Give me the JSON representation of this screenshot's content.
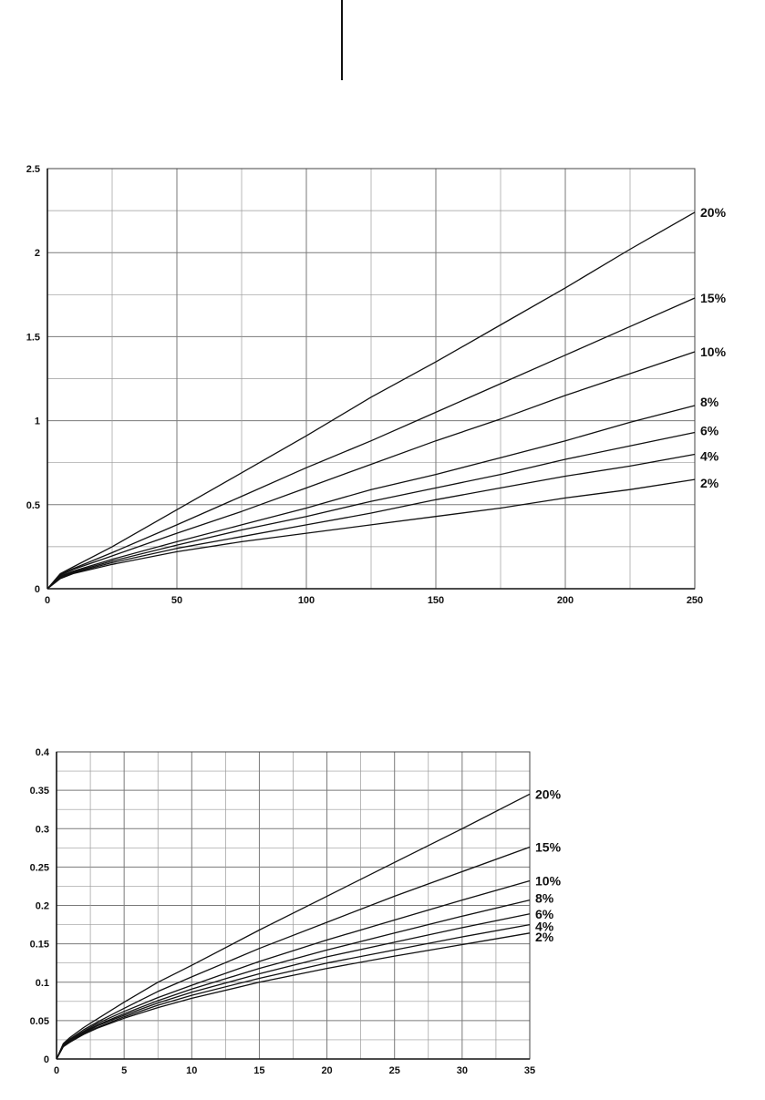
{
  "chart_data": [
    {
      "type": "line",
      "title": "",
      "xlabel": "",
      "ylabel": "",
      "xlim": [
        0,
        250
      ],
      "ylim": [
        0,
        2.5
      ],
      "x_ticks": [
        "0",
        "50",
        "100",
        "150",
        "200",
        "250"
      ],
      "y_ticks": [
        "0",
        "0.5",
        "1",
        "1.5",
        "2",
        "2.5"
      ],
      "grid": true,
      "x": [
        0,
        5,
        10,
        25,
        50,
        75,
        100,
        125,
        150,
        175,
        200,
        225,
        250
      ],
      "series": [
        {
          "name": "20%",
          "values": [
            0,
            0.09,
            0.13,
            0.25,
            0.47,
            0.69,
            0.91,
            1.14,
            1.35,
            1.57,
            1.79,
            2.02,
            2.24
          ]
        },
        {
          "name": "15%",
          "values": [
            0,
            0.085,
            0.12,
            0.215,
            0.38,
            0.55,
            0.72,
            0.88,
            1.05,
            1.22,
            1.39,
            1.56,
            1.73
          ]
        },
        {
          "name": "10%",
          "values": [
            0,
            0.08,
            0.115,
            0.195,
            0.33,
            0.46,
            0.6,
            0.74,
            0.88,
            1.01,
            1.15,
            1.28,
            1.41
          ]
        },
        {
          "name": "8%",
          "values": [
            0,
            0.075,
            0.105,
            0.175,
            0.28,
            0.38,
            0.48,
            0.59,
            0.68,
            0.78,
            0.88,
            0.99,
            1.09
          ]
        },
        {
          "name": "6%",
          "values": [
            0,
            0.07,
            0.1,
            0.165,
            0.26,
            0.35,
            0.43,
            0.52,
            0.6,
            0.68,
            0.77,
            0.85,
            0.93
          ]
        },
        {
          "name": "4%",
          "values": [
            0,
            0.065,
            0.095,
            0.155,
            0.24,
            0.31,
            0.38,
            0.45,
            0.53,
            0.6,
            0.67,
            0.73,
            0.8
          ]
        },
        {
          "name": "2%",
          "values": [
            0,
            0.06,
            0.09,
            0.145,
            0.22,
            0.28,
            0.33,
            0.38,
            0.43,
            0.48,
            0.54,
            0.59,
            0.65
          ]
        }
      ]
    },
    {
      "type": "line",
      "title": "",
      "xlabel": "",
      "ylabel": "",
      "xlim": [
        0,
        35
      ],
      "ylim": [
        0,
        0.4
      ],
      "x_ticks": [
        "0",
        "5",
        "10",
        "15",
        "20",
        "25",
        "30",
        "35"
      ],
      "y_ticks": [
        "0",
        "0.05",
        "0.1",
        "0.15",
        "0.2",
        "0.25",
        "0.3",
        "0.35",
        "0.4"
      ],
      "grid": true,
      "x": [
        0,
        0.5,
        1,
        2,
        3,
        5,
        7.5,
        10,
        15,
        20,
        25,
        30,
        35
      ],
      "series": [
        {
          "name": "20%",
          "values": [
            0,
            0.02,
            0.028,
            0.041,
            0.052,
            0.074,
            0.1,
            0.122,
            0.168,
            0.212,
            0.256,
            0.3,
            0.345
          ]
        },
        {
          "name": "15%",
          "values": [
            0,
            0.019,
            0.026,
            0.038,
            0.048,
            0.066,
            0.088,
            0.107,
            0.144,
            0.178,
            0.212,
            0.244,
            0.276
          ]
        },
        {
          "name": "10%",
          "values": [
            0,
            0.018,
            0.025,
            0.036,
            0.046,
            0.062,
            0.08,
            0.096,
            0.127,
            0.155,
            0.181,
            0.207,
            0.232
          ]
        },
        {
          "name": "8%",
          "values": [
            0,
            0.017,
            0.024,
            0.035,
            0.044,
            0.059,
            0.076,
            0.091,
            0.118,
            0.142,
            0.164,
            0.186,
            0.207
          ]
        },
        {
          "name": "6%",
          "values": [
            0,
            0.017,
            0.023,
            0.034,
            0.043,
            0.057,
            0.073,
            0.087,
            0.111,
            0.133,
            0.152,
            0.171,
            0.189
          ]
        },
        {
          "name": "4%",
          "values": [
            0,
            0.016,
            0.022,
            0.033,
            0.041,
            0.055,
            0.07,
            0.083,
            0.105,
            0.125,
            0.142,
            0.159,
            0.175
          ]
        },
        {
          "name": "2%",
          "values": [
            0,
            0.016,
            0.022,
            0.032,
            0.04,
            0.053,
            0.067,
            0.079,
            0.1,
            0.118,
            0.134,
            0.149,
            0.164
          ]
        }
      ]
    }
  ]
}
